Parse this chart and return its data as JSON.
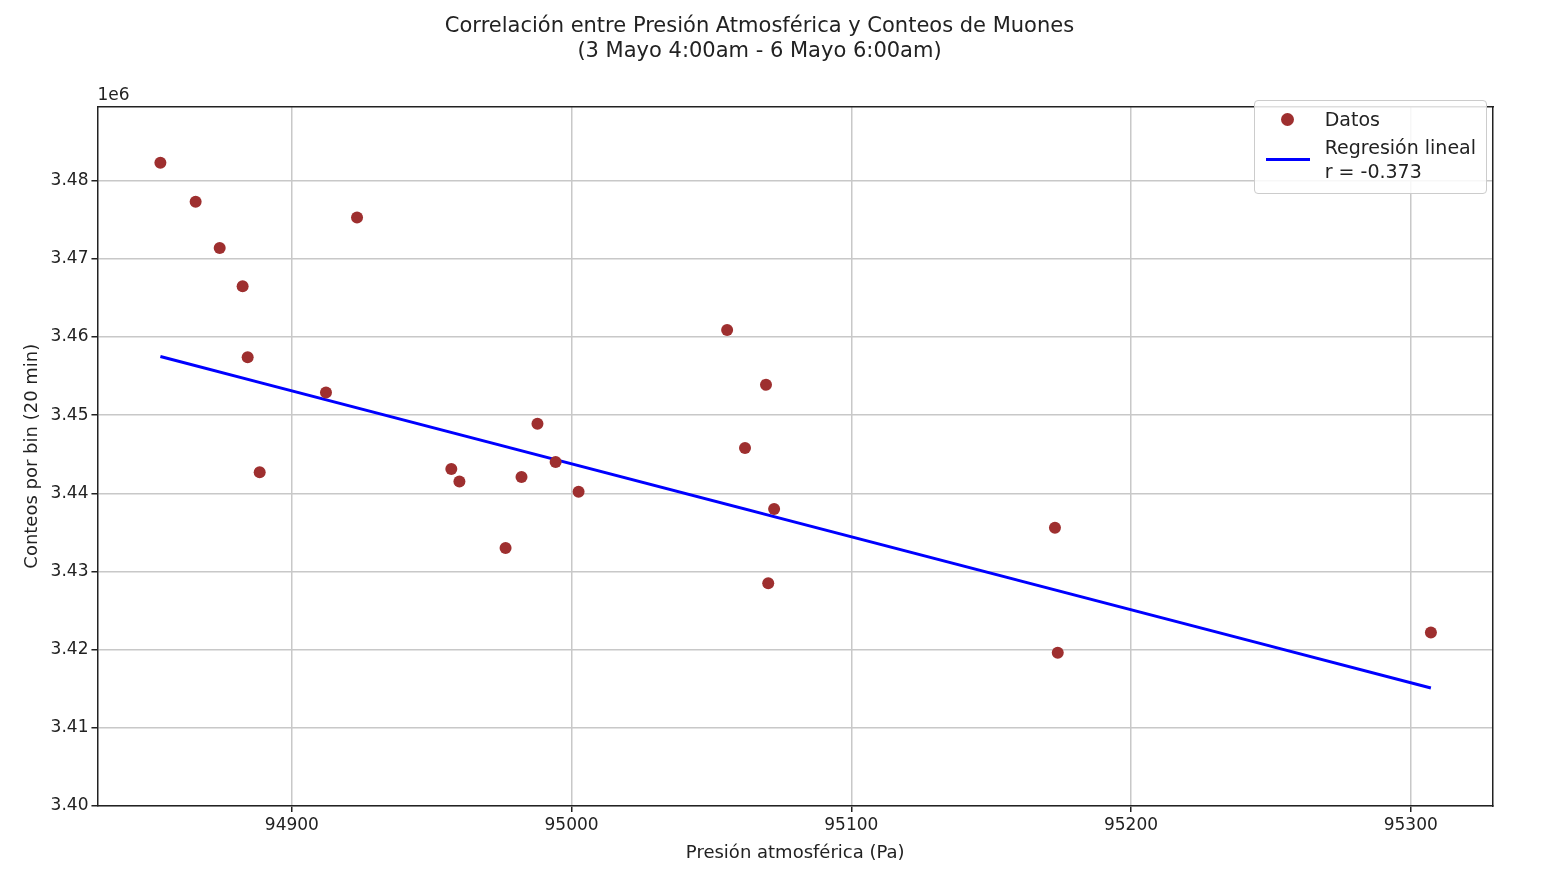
{
  "chart_data": {
    "type": "scatter",
    "title": "Correlación entre Presión Atmosférica y Conteos de Muones",
    "subtitle": "(3 Mayo 4:00am - 6 Mayo 6:00am)",
    "xlabel": "Presión atmosférica (Pa)",
    "ylabel": "Conteos por bin (20 min)",
    "annotations": [
      "1e6"
    ],
    "xlim": [
      94830.5,
      95329.4
    ],
    "xticks": [
      94900,
      95000,
      95100,
      95200,
      95300
    ],
    "ylim": [
      3.4,
      3.4895
    ],
    "yticks": [
      {
        "value": 3.4,
        "label": "3.40"
      },
      {
        "value": 3.41,
        "label": "3.41"
      },
      {
        "value": 3.42,
        "label": "3.42"
      },
      {
        "value": 3.43,
        "label": "3.43"
      },
      {
        "value": 3.44,
        "label": "3.44"
      },
      {
        "value": 3.45,
        "label": "3.45"
      },
      {
        "value": 3.46,
        "label": "3.46"
      },
      {
        "value": 3.47,
        "label": "3.47"
      },
      {
        "value": 3.48,
        "label": "3.48"
      }
    ],
    "grid": true,
    "legend": "top right",
    "marker": "circle",
    "series": [
      {
        "name": "Datos",
        "type": "scatter",
        "color": "#9e2f2f",
        "x": [
          94853.0,
          94865.6,
          94874.2,
          94882.4,
          94884.2,
          94888.5,
          94912.2,
          94923.3,
          94957.0,
          94959.9,
          94976.4,
          94982.1,
          94987.8,
          94994.3,
          95002.5,
          95055.6,
          95062.0,
          95069.5,
          95072.4,
          95070.3,
          95172.8,
          95173.8,
          95307.2
        ],
        "values": [
          3.4823,
          3.4773,
          3.4714,
          3.4665,
          3.4574,
          3.4427,
          3.4529,
          3.4753,
          3.4431,
          3.4415,
          3.433,
          3.4421,
          3.4489,
          3.444,
          3.4402,
          3.4609,
          3.4458,
          3.4539,
          3.438,
          3.4285,
          3.4356,
          3.4196,
          3.4222
        ]
      },
      {
        "name": "Regresión lineal\nr = -0.373",
        "type": "line",
        "color": "#0000ff",
        "line_style": "solid",
        "marker": "none",
        "x": [
          94853.0,
          95307.2
        ],
        "values": [
          3.4575,
          3.4151
        ]
      }
    ]
  }
}
